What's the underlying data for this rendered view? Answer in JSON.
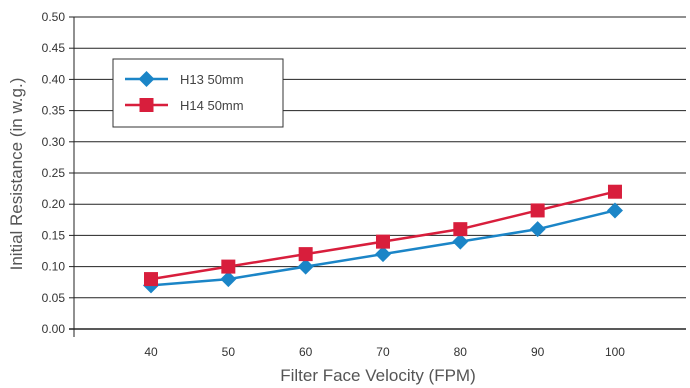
{
  "chart_data": {
    "type": "line",
    "title": "",
    "xlabel": "Filter Face Velocity (FPM)",
    "ylabel": "Initial Resistance (in w.g.)",
    "categories": [
      "40",
      "50",
      "60",
      "70",
      "80",
      "90",
      "100"
    ],
    "ylim": [
      0,
      0.5
    ],
    "yticks": [
      "0.00",
      "0.05",
      "0.10",
      "0.15",
      "0.20",
      "0.25",
      "0.30",
      "0.35",
      "0.40",
      "0.45",
      "0.50"
    ],
    "grid": "horizontal",
    "legend_position": "top-left",
    "series": [
      {
        "name": "H13 50mm",
        "color": "#1b85c7",
        "marker": "diamond",
        "values": [
          0.07,
          0.08,
          0.1,
          0.12,
          0.14,
          0.16,
          0.19
        ]
      },
      {
        "name": "H14 50mm",
        "color": "#d81e3c",
        "marker": "square",
        "values": [
          0.08,
          0.1,
          0.12,
          0.14,
          0.16,
          0.19,
          0.22
        ]
      }
    ]
  }
}
